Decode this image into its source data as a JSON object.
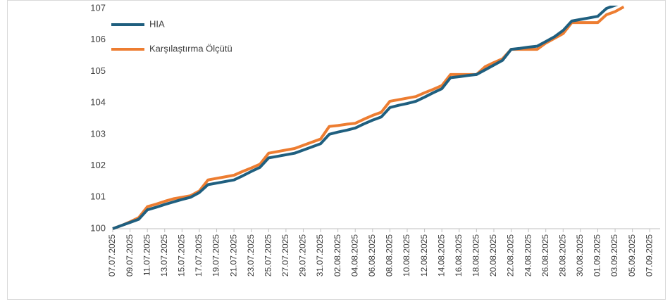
{
  "chart_data": {
    "type": "line",
    "categories": [
      "07.07.2025",
      null,
      "09.07.2025",
      null,
      "11.07.2025",
      null,
      "13.07.2025",
      null,
      "15.07.2025",
      null,
      "17.07.2025",
      null,
      "19.07.2025",
      null,
      "21.07.2025",
      null,
      "23.07.2025",
      null,
      "25.07.2025",
      null,
      "27.07.2025",
      null,
      "29.07.2025",
      null,
      "31.07.2025",
      null,
      "02.08.2025",
      null,
      "04.08.2025",
      null,
      "06.08.2025",
      null,
      "08.08.2025",
      null,
      "10.08.2025",
      null,
      "12.08.2025",
      null,
      "14.08.2025",
      null,
      "16.08.2025",
      null,
      "18.08.2025",
      null,
      "20.08.2025",
      null,
      "22.08.2025",
      null,
      "24.08.2025",
      null,
      "26.08.2025",
      null,
      "28.08.2025",
      null,
      "30.08.2025",
      null,
      "01.09.2025",
      null,
      "03.09.2025",
      null,
      "05.09.2025",
      null,
      "07.09.2025",
      null
    ],
    "series": [
      {
        "name": "HIA",
        "color": "#1f5f7f",
        "values": [
          100.0,
          100.1,
          100.2,
          100.3,
          100.6,
          100.68,
          100.77,
          100.85,
          100.93,
          101.0,
          101.15,
          101.4,
          101.45,
          101.5,
          101.55,
          101.68,
          101.82,
          101.95,
          102.25,
          102.3,
          102.35,
          102.4,
          102.5,
          102.6,
          102.7,
          103.0,
          103.07,
          103.13,
          103.2,
          103.33,
          103.45,
          103.55,
          103.85,
          103.92,
          103.98,
          104.05,
          104.18,
          104.32,
          104.45,
          104.8,
          104.83,
          104.87,
          104.9,
          105.05,
          105.2,
          105.35,
          105.7,
          105.73,
          105.77,
          105.8,
          105.95,
          106.1,
          106.3,
          106.6,
          106.65,
          106.7,
          106.75,
          107.0,
          107.1,
          107.2,
          null,
          null,
          null,
          null
        ]
      },
      {
        "name": "Karşılaştırma Ölçütü",
        "color": "#ed7d31",
        "values": [
          100.0,
          100.1,
          100.22,
          100.35,
          100.7,
          100.78,
          100.87,
          100.95,
          101.0,
          101.05,
          101.2,
          101.55,
          101.6,
          101.65,
          101.7,
          101.82,
          101.93,
          102.05,
          102.4,
          102.45,
          102.5,
          102.55,
          102.65,
          102.75,
          102.85,
          103.25,
          103.28,
          103.32,
          103.35,
          103.48,
          103.6,
          103.7,
          104.05,
          104.1,
          104.15,
          104.2,
          104.32,
          104.43,
          104.55,
          104.9,
          104.9,
          104.9,
          104.9,
          105.15,
          105.28,
          105.4,
          105.7,
          105.7,
          105.7,
          105.7,
          105.9,
          106.05,
          106.2,
          106.55,
          106.55,
          106.55,
          106.55,
          106.8,
          106.9,
          107.05,
          null,
          null,
          null,
          null
        ]
      }
    ],
    "ylim": [
      100,
      107
    ],
    "yticks": [
      100,
      101,
      102,
      103,
      104,
      105,
      106,
      107
    ],
    "grid": false,
    "legend": "upper left"
  }
}
